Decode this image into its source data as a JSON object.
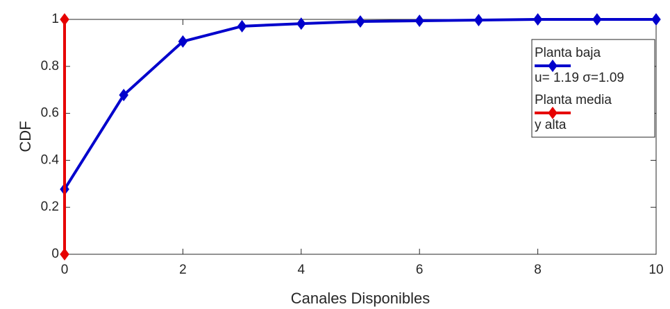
{
  "chart_data": {
    "type": "line",
    "xlabel": "Canales Disponibles",
    "ylabel": "CDF",
    "xlim": [
      0,
      10
    ],
    "ylim": [
      0,
      1
    ],
    "xticks": [
      0,
      2,
      4,
      6,
      8,
      10
    ],
    "yticks": [
      0,
      0.2,
      0.4,
      0.6,
      0.8,
      1
    ],
    "grid": false,
    "legend": "upper right",
    "series": [
      {
        "name": "Planta baja\nu= 1.19 σ=1.09",
        "color": "#0000cc",
        "x": [
          0,
          1,
          2,
          3,
          4,
          5,
          6,
          7,
          8,
          9,
          10
        ],
        "values": [
          0.277,
          0.678,
          0.906,
          0.971,
          0.982,
          0.991,
          0.994,
          0.997,
          1,
          1,
          1
        ]
      },
      {
        "name": "Planta media\ny alta",
        "color": "#e60000",
        "x": [
          0,
          0
        ],
        "values": [
          0,
          1
        ]
      }
    ]
  }
}
